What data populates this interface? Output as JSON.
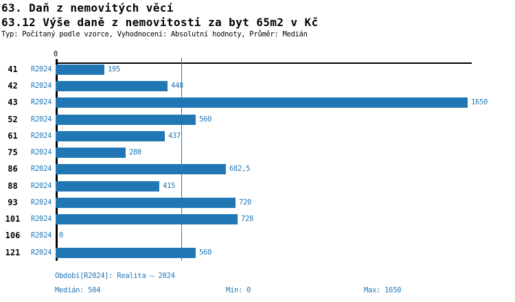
{
  "header": {
    "title": "63. Daň z nemovitých věcí",
    "subtitle": "63.12 Výše daně z nemovitosti za byt 65m2 v Kč",
    "meta": "Typ: Počítaný podle vzorce, Vyhodnocení: Absolutní hodnoty, Průměr: Medián"
  },
  "chart_data": {
    "type": "bar",
    "orientation": "horizontal",
    "title": "63.12 Výše daně z nemovitosti za byt 65m2 v Kč",
    "categories": [
      "41",
      "42",
      "43",
      "52",
      "61",
      "75",
      "86",
      "88",
      "93",
      "101",
      "106",
      "121"
    ],
    "series": [
      {
        "name": "R2024",
        "values": [
          195,
          448,
          1650,
          560,
          437,
          280,
          682.5,
          415,
          720,
          728,
          0,
          560
        ],
        "value_labels": [
          "195",
          "448",
          "1650",
          "560",
          "437",
          "280",
          "682,5",
          "415",
          "720",
          "728",
          "0",
          "560"
        ]
      }
    ],
    "xlim": [
      0,
      1650
    ],
    "x_tick_labels": [
      "0"
    ],
    "median_value": 504,
    "min_value": 0,
    "max_value": 1650,
    "grid": false,
    "legend_position": "none",
    "bar_color": "#2077b4",
    "median_line_color": "#2077b4"
  },
  "footer": {
    "period_label": "Období[R2024]: Realita – 2024",
    "median_label": "Medián: 504",
    "min_label": "Min: 0",
    "max_label": "Max: 1650"
  }
}
